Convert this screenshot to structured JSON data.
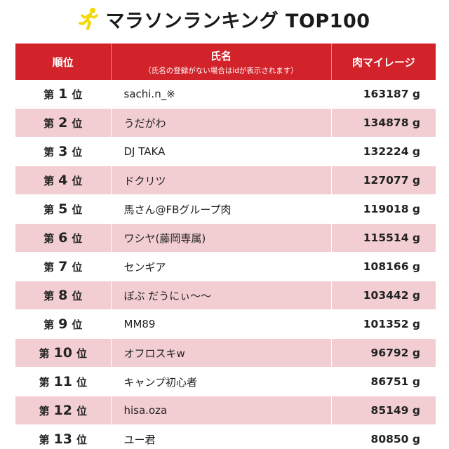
{
  "header": {
    "title": "マラソンランキング TOP100",
    "icon": "runner-icon",
    "icon_color": "#f5d800"
  },
  "table": {
    "columns": {
      "rank": "順位",
      "name": "氏名",
      "name_note": "（氏名の登録がない場合はidが表示されます）",
      "points": "肉マイレージ"
    },
    "rank_prefix": "第",
    "rank_suffix": "位",
    "unit": "g",
    "colors": {
      "header_bg": "#d2232a",
      "stripe_bg": "#f2ced2"
    },
    "rows": [
      {
        "rank": "1",
        "name": "sachi.n_※",
        "points": "163187"
      },
      {
        "rank": "2",
        "name": "うだがわ",
        "points": "134878"
      },
      {
        "rank": "3",
        "name": "DJ TAKA",
        "points": "132224"
      },
      {
        "rank": "4",
        "name": "ドクリツ",
        "points": "127077"
      },
      {
        "rank": "5",
        "name": "馬さん@FBグループ肉",
        "points": "119018"
      },
      {
        "rank": "6",
        "name": "ワシヤ(藤岡専属)",
        "points": "115514"
      },
      {
        "rank": "7",
        "name": "センギア",
        "points": "108166"
      },
      {
        "rank": "8",
        "name": "ぼぶ だうにぃ〜〜",
        "points": "103442"
      },
      {
        "rank": "9",
        "name": "MM89",
        "points": "101352"
      },
      {
        "rank": "10",
        "name": "オフロスキw",
        "points": "96792"
      },
      {
        "rank": "11",
        "name": "キャンプ初心者",
        "points": "86751"
      },
      {
        "rank": "12",
        "name": "hisa.oza",
        "points": "85149"
      },
      {
        "rank": "13",
        "name": "ユー君",
        "points": "80850"
      }
    ]
  }
}
